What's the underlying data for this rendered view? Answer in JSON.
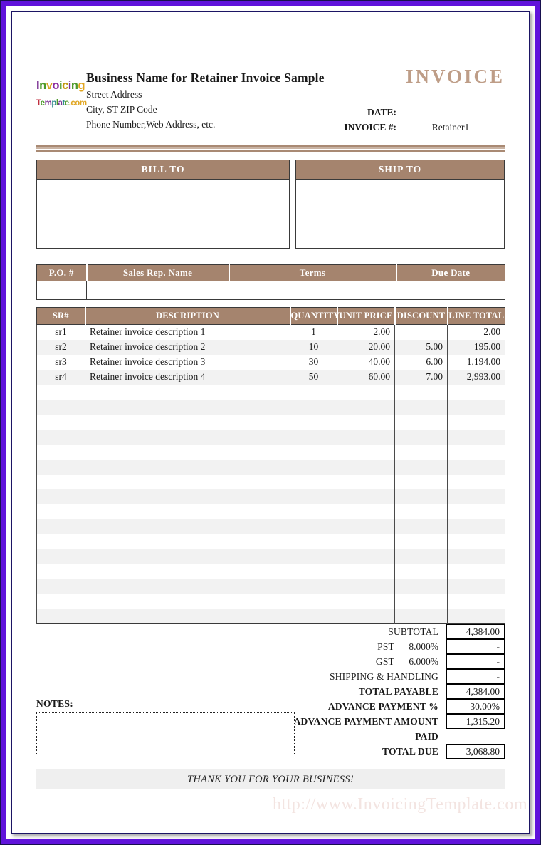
{
  "logo": {
    "line1": [
      {
        "ch": "I",
        "color": "#7B3294"
      },
      {
        "ch": "n",
        "color": "#4C9A2A"
      },
      {
        "ch": "v",
        "color": "#D9A420"
      },
      {
        "ch": "o",
        "color": "#8A2BA0"
      },
      {
        "ch": "i",
        "color": "#4C9A2A"
      },
      {
        "ch": "c",
        "color": "#C09A10"
      },
      {
        "ch": "i",
        "color": "#7B3294"
      },
      {
        "ch": "n",
        "color": "#4C9A2A"
      },
      {
        "ch": "g",
        "color": "#E0A520"
      }
    ],
    "line2": [
      {
        "ch": "T",
        "color": "#C03040"
      },
      {
        "ch": "e",
        "color": "#4C9A2A"
      },
      {
        "ch": "m",
        "color": "#7B3294"
      },
      {
        "ch": "p",
        "color": "#2E8B8B"
      },
      {
        "ch": "l",
        "color": "#4C9A2A"
      },
      {
        "ch": "a",
        "color": "#7B3294"
      },
      {
        "ch": "t",
        "color": "#2E8B8B"
      },
      {
        "ch": "e",
        "color": "#4C9A2A"
      },
      {
        "ch": ".com",
        "color": "#E0A520"
      }
    ]
  },
  "header": {
    "company_name": "Business Name for Retainer Invoice Sample",
    "address_lines": [
      "Street Address",
      "City, ST  ZIP Code",
      "Phone Number,Web Address, etc."
    ],
    "invoice_title": "INVOICE",
    "fields": [
      {
        "label": "DATE:",
        "value": ""
      },
      {
        "label": "INVOICE #:",
        "value": "Retainer1"
      }
    ]
  },
  "bill_to_label": "BILL TO",
  "ship_to_label": "SHIP TO",
  "order_info": {
    "headers": [
      "P.O. #",
      "Sales Rep. Name",
      "Terms",
      "Due Date"
    ],
    "values": [
      "",
      "",
      "",
      ""
    ]
  },
  "items": {
    "headers": [
      "SR#",
      "DESCRIPTION",
      "QUANTITY",
      "UNIT PRICE",
      "DISCOUNT",
      "LINE TOTAL"
    ],
    "rows": [
      {
        "sr": "sr1",
        "description": "Retainer invoice description 1",
        "quantity": "1",
        "unit_price": "2.00",
        "discount": "",
        "line_total": "2.00"
      },
      {
        "sr": "sr2",
        "description": "Retainer invoice description 2",
        "quantity": "10",
        "unit_price": "20.00",
        "discount": "5.00",
        "line_total": "195.00"
      },
      {
        "sr": "sr3",
        "description": "Retainer invoice description 3",
        "quantity": "30",
        "unit_price": "40.00",
        "discount": "6.00",
        "line_total": "1,194.00"
      },
      {
        "sr": "sr4",
        "description": "Retainer invoice description 4",
        "quantity": "50",
        "unit_price": "60.00",
        "discount": "7.00",
        "line_total": "2,993.00"
      }
    ],
    "empty_row_count": 16
  },
  "totals": {
    "rows": [
      {
        "label": "SUBTOTAL",
        "rate": "",
        "value": "4,384.00",
        "bold": false,
        "boxed": true
      },
      {
        "label": "PST",
        "rate": "8.000%",
        "value": "-",
        "bold": false,
        "boxed": true
      },
      {
        "label": "GST",
        "rate": "6.000%",
        "value": "-",
        "bold": false,
        "boxed": true
      },
      {
        "label": "SHIPPING & HANDLING",
        "rate": "",
        "value": "-",
        "bold": false,
        "boxed": true
      },
      {
        "label": "TOTAL PAYABLE",
        "rate": "",
        "value": "4,384.00",
        "bold": true,
        "boxed": true
      },
      {
        "label": "ADVANCE PAYMENT %",
        "rate": "",
        "value": "30.00%",
        "bold": true,
        "boxed": true
      },
      {
        "label": "ADVANCE PAYMENT AMOUNT",
        "rate": "",
        "value": "1,315.20",
        "bold": true,
        "boxed": true
      },
      {
        "label": "PAID",
        "rate": "",
        "value": "",
        "bold": true,
        "boxed": false
      },
      {
        "label": "TOTAL DUE",
        "rate": "",
        "value": "3,068.80",
        "bold": true,
        "boxed": true
      }
    ]
  },
  "notes_label": "NOTES:",
  "footer": {
    "thank_you": "THANK YOU FOR YOUR BUSINESS!",
    "watermark": "http://www.InvoicingTemplate.com"
  },
  "colors": {
    "accent_tan": "#A5846E",
    "invoice_title": "#BE9D87",
    "row_alt": "#F2F2F2",
    "frame_violet": "#6013DB",
    "frame_navy": "#1B1464",
    "watermark_pink": "#F3E4E1"
  }
}
